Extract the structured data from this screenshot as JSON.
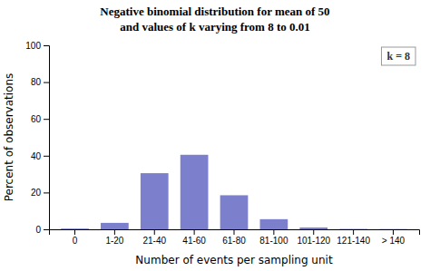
{
  "chart_data": {
    "type": "bar",
    "title": "Negative binomial distribution for mean of 50",
    "subtitle": "and values of k varying from 8 to 0.01",
    "categories": [
      "0",
      "1-20",
      "21-40",
      "41-60",
      "61-80",
      "81-100",
      "101-120",
      "121-140",
      "> 140"
    ],
    "values": [
      0.4,
      3.5,
      30.5,
      40.5,
      18.5,
      5.5,
      1.0,
      0.2,
      0.15
    ],
    "color": "#7b7fcc",
    "x_label": "Number of events per sampling unit",
    "y_label": "Percent of observations",
    "ylim": [
      0,
      100
    ],
    "yticks": [
      0,
      20,
      40,
      60,
      80,
      100
    ],
    "annotation": "k = 8",
    "grid": false
  }
}
